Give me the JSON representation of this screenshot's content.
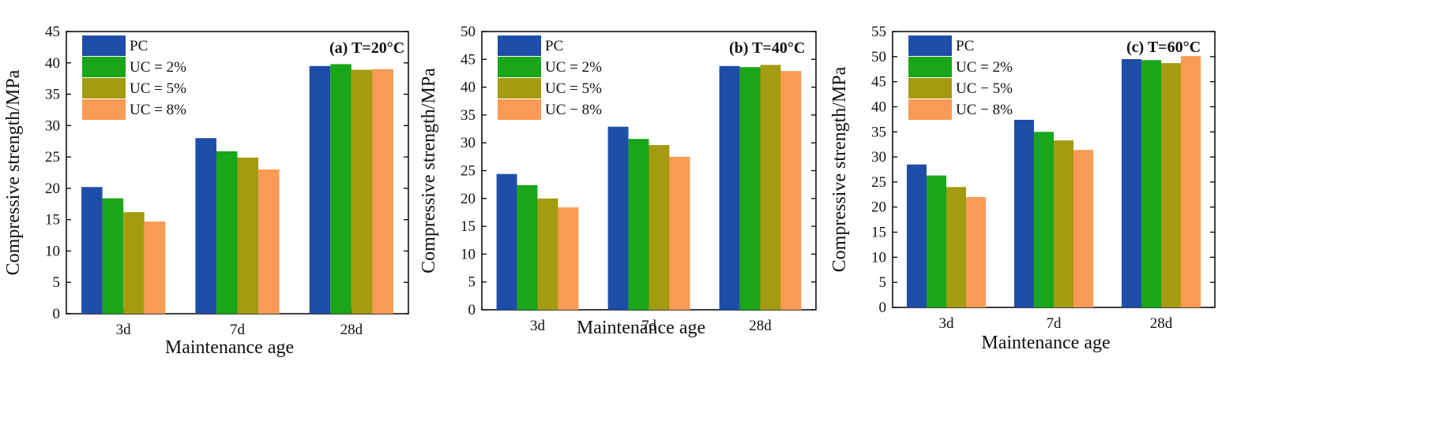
{
  "figure": {
    "colors": {
      "PC": "#1f4ea8",
      "UC = 2%": "#19a619",
      "UC = 5%": "#a59b12",
      "UC = 8%": "#f99a55"
    }
  },
  "chart_data": [
    {
      "type": "bar",
      "title": "(a) T=20°C",
      "xlabel": "Maintenance age",
      "ylabel": "Compressive strength/MPa",
      "categories": [
        "3d",
        "7d",
        "28d"
      ],
      "ylim": [
        0,
        45
      ],
      "yticks": [
        0,
        5,
        10,
        15,
        20,
        25,
        30,
        35,
        40,
        45
      ],
      "legend_position": "top-left",
      "series": [
        {
          "name": "PC",
          "values": [
            20.2,
            28.0,
            39.5
          ]
        },
        {
          "name": "UC = 2%",
          "values": [
            18.4,
            25.9,
            39.8
          ]
        },
        {
          "name": "UC = 5%",
          "values": [
            16.2,
            24.9,
            38.9
          ]
        },
        {
          "name": "UC = 8%",
          "values": [
            14.7,
            23.0,
            39.0
          ]
        }
      ]
    },
    {
      "type": "bar",
      "title": "(b) T=40°C",
      "xlabel": "Maintenance age",
      "ylabel": "Compressive strength/MPa",
      "categories": [
        "3d",
        "7d",
        "28d"
      ],
      "ylim": [
        0,
        50
      ],
      "yticks": [
        0,
        5,
        10,
        15,
        20,
        25,
        30,
        35,
        40,
        45,
        50
      ],
      "legend_position": "top-left",
      "series": [
        {
          "name": "PC",
          "values": [
            24.4,
            32.9,
            43.8
          ]
        },
        {
          "name": "UC = 2%",
          "values": [
            22.4,
            30.7,
            43.6
          ]
        },
        {
          "name": "UC = 5%",
          "values": [
            20.0,
            29.6,
            44.0
          ]
        },
        {
          "name": "UC − 8%",
          "values": [
            18.4,
            27.5,
            42.9
          ]
        }
      ]
    },
    {
      "type": "bar",
      "title": "(c) T=60°C",
      "xlabel": "Maintenance age",
      "ylabel": "Compressive strength/MPa",
      "categories": [
        "3d",
        "7d",
        "28d"
      ],
      "ylim": [
        0,
        55
      ],
      "yticks": [
        0,
        5,
        10,
        15,
        20,
        25,
        30,
        35,
        40,
        45,
        50,
        55
      ],
      "legend_position": "top-left",
      "series": [
        {
          "name": "PC",
          "values": [
            28.5,
            37.4,
            49.5
          ]
        },
        {
          "name": "UC = 2%",
          "values": [
            26.3,
            35.0,
            49.3
          ]
        },
        {
          "name": "UC − 5%",
          "values": [
            24.0,
            33.3,
            48.7
          ]
        },
        {
          "name": "UC − 8%",
          "values": [
            22.0,
            31.4,
            50.1
          ]
        }
      ]
    }
  ]
}
